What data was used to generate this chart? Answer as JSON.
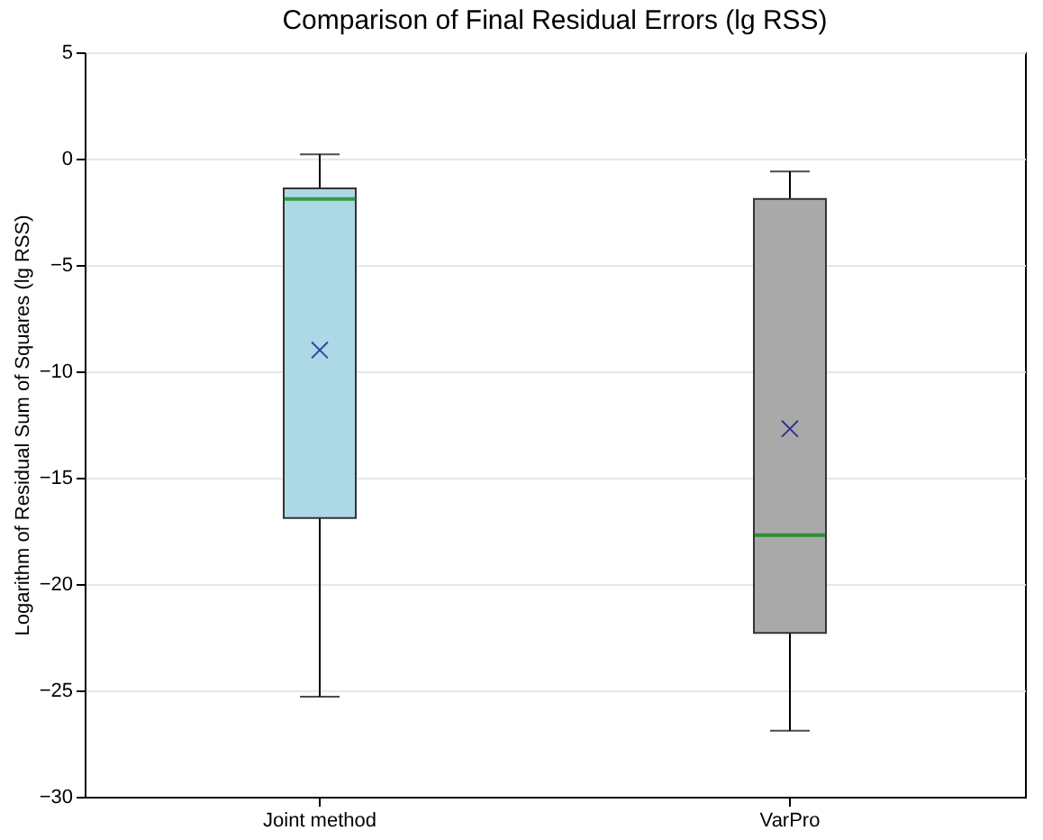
{
  "chart_data": {
    "type": "box",
    "title": "Comparison of Final Residual Errors (lg RSS)",
    "ylabel": "Logarithm of Residual Sum of Squares (lg RSS)",
    "categories": [
      "Joint method",
      "VarPro"
    ],
    "boxes": [
      {
        "low": -25.3,
        "q1": -16.9,
        "median": -1.9,
        "q3": -1.4,
        "high": 0.2,
        "mean": -9.0
      },
      {
        "low": -26.9,
        "q1": -22.3,
        "median": -17.7,
        "q3": -1.9,
        "high": -0.6,
        "mean": -12.7
      }
    ],
    "colors": [
      "#add8e6",
      "#a9a9a9"
    ],
    "ylim": [
      -30,
      5
    ],
    "yticks": [
      -30,
      -25,
      -20,
      -15,
      -10,
      -5,
      0,
      5
    ],
    "grid": "y",
    "marker": "cross"
  }
}
